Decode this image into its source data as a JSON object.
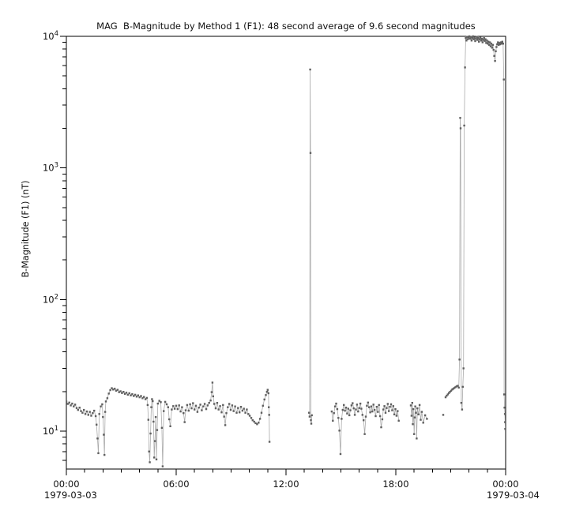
{
  "page": {
    "background": "#ffffff"
  },
  "chart_data": {
    "type": "line",
    "title": "MAG  B-Magnitude by Method 1 (F1): 48 second average of 9.6 second magnitudes",
    "ylabel": "B-Magnitude (F1) (nT)",
    "xlabel": "",
    "yscale": "log",
    "ylim": [
      5.15,
      10000
    ],
    "xlim_hours": [
      0,
      24
    ],
    "grid": false,
    "legend": null,
    "marker": "small-square",
    "colors": {
      "marker": "#5f5f5f",
      "line": "#ababab",
      "axis": "#000000",
      "text": "#111111"
    },
    "x_major_ticks": [
      {
        "t": 0,
        "label": "00:00"
      },
      {
        "t": 6,
        "label": "06:00"
      },
      {
        "t": 12,
        "label": "12:00"
      },
      {
        "t": 18,
        "label": "18:00"
      },
      {
        "t": 24,
        "label": "00:00"
      }
    ],
    "x_minor_tick_interval_hours": 1,
    "x_date_labels": [
      {
        "t": 0,
        "text": "1979-03-03",
        "dx": -28
      },
      {
        "t": 24,
        "text": "1979-03-04",
        "dx": -24
      }
    ],
    "y_major_ticks": [
      {
        "base": "10",
        "exponent": 4
      },
      {
        "base": "10",
        "exponent": 3
      },
      {
        "base": "10",
        "exponent": 2
      },
      {
        "base": "10",
        "exponent": 1
      }
    ],
    "segments": [
      [
        [
          0.0,
          16.8
        ],
        [
          0.08,
          16.1
        ],
        [
          0.16,
          16.5
        ],
        [
          0.24,
          15.7
        ],
        [
          0.32,
          16.2
        ],
        [
          0.4,
          15.4
        ],
        [
          0.48,
          15.9
        ],
        [
          0.56,
          15.0
        ],
        [
          0.64,
          14.5
        ],
        [
          0.72,
          15.1
        ],
        [
          0.8,
          14.2
        ],
        [
          0.88,
          13.8
        ],
        [
          0.96,
          14.5
        ],
        [
          1.04,
          13.5
        ],
        [
          1.12,
          14.1
        ],
        [
          1.2,
          13.3
        ],
        [
          1.28,
          14.0
        ],
        [
          1.36,
          13.1
        ],
        [
          1.44,
          13.7
        ],
        [
          1.52,
          14.3
        ],
        [
          1.6,
          13.0
        ],
        [
          1.65,
          11.2
        ],
        [
          1.7,
          8.8
        ],
        [
          1.75,
          6.8
        ],
        [
          1.8,
          13.5
        ],
        [
          1.88,
          15.4
        ],
        [
          1.96,
          16.0
        ],
        [
          2.0,
          12.8
        ],
        [
          2.04,
          9.4
        ],
        [
          2.08,
          6.6
        ],
        [
          2.12,
          14.0
        ],
        [
          2.16,
          16.8
        ],
        [
          2.24,
          17.8
        ],
        [
          2.32,
          19.3
        ],
        [
          2.4,
          20.5
        ],
        [
          2.48,
          21.2
        ],
        [
          2.56,
          20.7
        ],
        [
          2.64,
          21.0
        ],
        [
          2.72,
          20.3
        ],
        [
          2.8,
          20.6
        ],
        [
          2.88,
          19.8
        ],
        [
          2.96,
          20.1
        ],
        [
          3.04,
          19.5
        ],
        [
          3.12,
          19.9
        ],
        [
          3.2,
          19.2
        ],
        [
          3.28,
          19.6
        ],
        [
          3.36,
          18.9
        ],
        [
          3.44,
          19.4
        ],
        [
          3.52,
          18.7
        ],
        [
          3.6,
          19.1
        ],
        [
          3.68,
          18.5
        ],
        [
          3.76,
          18.9
        ],
        [
          3.84,
          18.3
        ],
        [
          3.92,
          18.7
        ],
        [
          4.0,
          18.1
        ],
        [
          4.08,
          18.5
        ],
        [
          4.16,
          17.8
        ],
        [
          4.24,
          18.2
        ],
        [
          4.32,
          17.5
        ],
        [
          4.4,
          17.9
        ],
        [
          4.44,
          15.8
        ],
        [
          4.48,
          12.2
        ],
        [
          4.52,
          7.0
        ],
        [
          4.56,
          5.8
        ],
        [
          4.6,
          9.6
        ],
        [
          4.64,
          15.2
        ],
        [
          4.68,
          17.5
        ],
        [
          4.72,
          16.9
        ],
        [
          4.76,
          11.8
        ],
        [
          4.8,
          6.3
        ],
        [
          4.84,
          8.4
        ],
        [
          4.88,
          12.8
        ],
        [
          4.92,
          6.1
        ],
        [
          4.96,
          10.2
        ],
        [
          5.0,
          16.2
        ],
        [
          5.08,
          17.0
        ],
        [
          5.16,
          16.6
        ],
        [
          5.22,
          10.6
        ],
        [
          5.26,
          5.4
        ],
        [
          5.32,
          14.2
        ],
        [
          5.4,
          16.7
        ],
        [
          5.48,
          16.0
        ],
        [
          5.56,
          15.2
        ],
        [
          5.62,
          12.3
        ],
        [
          5.68,
          10.9
        ],
        [
          5.76,
          14.6
        ],
        [
          5.84,
          15.5
        ],
        [
          5.92,
          14.8
        ],
        [
          6.0,
          15.6
        ],
        [
          6.08,
          14.7
        ],
        [
          6.16,
          15.7
        ],
        [
          6.24,
          14.1
        ],
        [
          6.32,
          15.2
        ],
        [
          6.4,
          13.7
        ],
        [
          6.46,
          11.7
        ],
        [
          6.52,
          14.4
        ],
        [
          6.6,
          15.8
        ],
        [
          6.68,
          14.3
        ],
        [
          6.76,
          16.0
        ],
        [
          6.84,
          14.9
        ],
        [
          6.92,
          16.3
        ],
        [
          7.0,
          14.6
        ],
        [
          7.08,
          15.6
        ],
        [
          7.16,
          14.0
        ],
        [
          7.24,
          15.1
        ],
        [
          7.32,
          15.9
        ],
        [
          7.4,
          14.4
        ],
        [
          7.48,
          15.4
        ],
        [
          7.56,
          16.1
        ],
        [
          7.64,
          14.7
        ],
        [
          7.72,
          15.7
        ],
        [
          7.8,
          16.4
        ],
        [
          7.88,
          17.1
        ],
        [
          7.94,
          19.8
        ],
        [
          7.98,
          23.4
        ],
        [
          8.02,
          18.4
        ],
        [
          8.08,
          16.1
        ],
        [
          8.16,
          14.9
        ],
        [
          8.24,
          16.4
        ],
        [
          8.32,
          14.6
        ],
        [
          8.4,
          15.5
        ],
        [
          8.48,
          13.9
        ],
        [
          8.56,
          15.8
        ],
        [
          8.62,
          12.9
        ],
        [
          8.68,
          11.1
        ],
        [
          8.74,
          13.7
        ],
        [
          8.82,
          15.2
        ],
        [
          8.9,
          16.1
        ],
        [
          8.98,
          14.5
        ],
        [
          9.06,
          15.7
        ],
        [
          9.14,
          14.2
        ],
        [
          9.22,
          15.4
        ],
        [
          9.3,
          13.8
        ],
        [
          9.38,
          15.0
        ],
        [
          9.46,
          13.9
        ],
        [
          9.54,
          15.3
        ],
        [
          9.62,
          14.3
        ],
        [
          9.7,
          14.8
        ],
        [
          9.78,
          13.8
        ],
        [
          9.86,
          14.6
        ],
        [
          9.94,
          13.5
        ],
        [
          10.02,
          13.1
        ],
        [
          10.1,
          12.6
        ],
        [
          10.18,
          12.1
        ],
        [
          10.26,
          11.8
        ],
        [
          10.34,
          11.5
        ],
        [
          10.42,
          11.3
        ],
        [
          10.5,
          11.6
        ],
        [
          10.58,
          12.4
        ],
        [
          10.66,
          13.8
        ],
        [
          10.74,
          15.6
        ],
        [
          10.82,
          17.4
        ],
        [
          10.9,
          18.8
        ],
        [
          10.96,
          19.9
        ],
        [
          11.0,
          20.6
        ],
        [
          11.04,
          19.4
        ],
        [
          11.06,
          15.2
        ],
        [
          11.08,
          13.3
        ],
        [
          11.1,
          8.3
        ]
      ],
      [
        [
          13.26,
          13.8
        ],
        [
          13.29,
          12.9
        ],
        [
          13.32,
          5600
        ],
        [
          13.34,
          1300
        ],
        [
          13.36,
          12.1
        ],
        [
          13.38,
          11.4
        ],
        [
          13.41,
          13.2
        ]
      ],
      [
        [
          14.5,
          14.1
        ],
        [
          14.56,
          12.0
        ],
        [
          14.62,
          13.7
        ],
        [
          14.68,
          15.4
        ],
        [
          14.74,
          16.2
        ],
        [
          14.8,
          14.7
        ],
        [
          14.86,
          12.6
        ],
        [
          14.92,
          10.1
        ],
        [
          14.98,
          6.7
        ],
        [
          15.04,
          12.4
        ],
        [
          15.1,
          14.5
        ],
        [
          15.16,
          15.8
        ],
        [
          15.22,
          14.3
        ],
        [
          15.28,
          15.1
        ],
        [
          15.34,
          13.6
        ],
        [
          15.4,
          14.8
        ],
        [
          15.46,
          13.2
        ],
        [
          15.52,
          14.4
        ],
        [
          15.58,
          15.7
        ],
        [
          15.64,
          16.3
        ],
        [
          15.7,
          14.9
        ],
        [
          15.76,
          13.3
        ],
        [
          15.82,
          14.6
        ],
        [
          15.88,
          15.9
        ],
        [
          15.94,
          14.1
        ],
        [
          16.0,
          15.0
        ],
        [
          16.06,
          16.2
        ],
        [
          16.12,
          14.8
        ],
        [
          16.18,
          13.3
        ],
        [
          16.24,
          12.1
        ],
        [
          16.3,
          9.5
        ],
        [
          16.36,
          12.9
        ],
        [
          16.42,
          15.6
        ],
        [
          16.48,
          16.5
        ],
        [
          16.54,
          15.2
        ],
        [
          16.6,
          13.9
        ],
        [
          16.66,
          15.4
        ],
        [
          16.72,
          14.1
        ],
        [
          16.78,
          15.9
        ],
        [
          16.84,
          14.5
        ],
        [
          16.9,
          13.0
        ],
        [
          16.96,
          15.3
        ],
        [
          17.02,
          14.0
        ],
        [
          17.08,
          15.8
        ],
        [
          17.14,
          13.0
        ],
        [
          17.2,
          10.7
        ],
        [
          17.26,
          12.3
        ],
        [
          17.32,
          14.6
        ],
        [
          17.38,
          15.5
        ],
        [
          17.44,
          13.8
        ],
        [
          17.5,
          15.0
        ],
        [
          17.56,
          16.1
        ],
        [
          17.62,
          14.2
        ],
        [
          17.68,
          15.3
        ],
        [
          17.74,
          16.0
        ],
        [
          17.8,
          14.4
        ],
        [
          17.86,
          15.5
        ],
        [
          17.92,
          13.4
        ],
        [
          17.98,
          14.7
        ],
        [
          18.04,
          13.1
        ],
        [
          18.1,
          14.2
        ],
        [
          18.16,
          12.0
        ]
      ],
      [
        [
          18.82,
          15.7
        ],
        [
          18.86,
          13.1
        ],
        [
          18.9,
          16.4
        ],
        [
          18.93,
          11.3
        ],
        [
          18.96,
          14.7
        ],
        [
          19.0,
          9.5
        ],
        [
          19.03,
          12.7
        ],
        [
          19.06,
          15.4
        ],
        [
          19.1,
          13.8
        ],
        [
          19.14,
          8.8
        ],
        [
          19.18,
          14.9
        ],
        [
          19.24,
          13.4
        ],
        [
          19.3,
          15.8
        ],
        [
          19.36,
          12.2
        ],
        [
          19.42,
          14.0
        ],
        [
          19.5,
          11.6
        ],
        [
          19.6,
          13.2
        ],
        [
          19.7,
          12.4
        ]
      ],
      [
        [
          20.72,
          18.1
        ],
        [
          20.78,
          18.6
        ],
        [
          20.84,
          19.0
        ],
        [
          20.9,
          19.5
        ],
        [
          20.96,
          19.9
        ],
        [
          21.02,
          20.3
        ],
        [
          21.08,
          20.7
        ],
        [
          21.14,
          21.0
        ],
        [
          21.2,
          21.3
        ],
        [
          21.26,
          21.6
        ],
        [
          21.32,
          21.9
        ],
        [
          21.38,
          22.1
        ],
        [
          21.44,
          21.4
        ],
        [
          21.48,
          35.0
        ],
        [
          21.52,
          2400
        ],
        [
          21.54,
          2000
        ],
        [
          21.58,
          16.4
        ],
        [
          21.62,
          14.6
        ],
        [
          21.66,
          21.7
        ],
        [
          21.7,
          30.0
        ],
        [
          21.74,
          2100
        ],
        [
          21.78,
          5800
        ],
        [
          21.82,
          9700
        ],
        [
          21.86,
          9300
        ],
        [
          21.9,
          9900
        ],
        [
          21.94,
          9500
        ],
        [
          21.98,
          9800
        ],
        [
          22.02,
          10000
        ],
        [
          22.06,
          9600
        ],
        [
          22.1,
          9900
        ],
        [
          22.14,
          9300
        ],
        [
          22.18,
          9700
        ],
        [
          22.22,
          10000
        ],
        [
          22.26,
          9500
        ],
        [
          22.3,
          9800
        ],
        [
          22.34,
          9200
        ],
        [
          22.38,
          9600
        ],
        [
          22.42,
          9900
        ],
        [
          22.46,
          9400
        ],
        [
          22.5,
          9700
        ],
        [
          22.54,
          9100
        ],
        [
          22.58,
          9500
        ],
        [
          22.62,
          9800
        ],
        [
          22.66,
          9300
        ],
        [
          22.7,
          9600
        ],
        [
          22.74,
          9000
        ],
        [
          22.78,
          9400
        ],
        [
          22.82,
          9700
        ],
        [
          22.86,
          9200
        ],
        [
          22.9,
          9500
        ],
        [
          22.94,
          8900
        ],
        [
          22.98,
          9300
        ],
        [
          23.02,
          8800
        ],
        [
          23.06,
          9100
        ],
        [
          23.1,
          8600
        ],
        [
          23.14,
          9000
        ],
        [
          23.18,
          8400
        ],
        [
          23.22,
          8800
        ],
        [
          23.26,
          8200
        ],
        [
          23.3,
          8600
        ],
        [
          23.34,
          7900
        ],
        [
          23.38,
          7100
        ],
        [
          23.42,
          6500
        ],
        [
          23.46,
          7700
        ],
        [
          23.5,
          8300
        ],
        [
          23.54,
          8700
        ],
        [
          23.58,
          9000
        ],
        [
          23.62,
          8600
        ],
        [
          23.66,
          8900
        ],
        [
          23.7,
          8700
        ],
        [
          23.74,
          9000
        ],
        [
          23.78,
          8800
        ],
        [
          23.82,
          9100
        ],
        [
          23.86,
          8800
        ],
        [
          23.9,
          4700
        ],
        [
          23.92,
          19.0
        ],
        [
          23.94,
          15.1
        ],
        [
          23.96,
          13.5
        ],
        [
          23.97,
          11.7
        ],
        [
          23.98,
          10.4
        ]
      ]
    ],
    "isolated_points": [
      [
        20.59,
        13.3
      ]
    ]
  }
}
